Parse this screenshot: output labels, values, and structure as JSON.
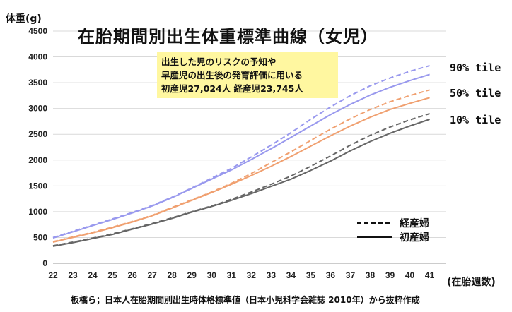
{
  "chart_data": {
    "type": "line",
    "title": "在胎期間別出生体重標準曲線（女児）",
    "ylabel": "体重(g)",
    "xlabel": "(在胎週数)",
    "x": [
      22,
      23,
      24,
      25,
      26,
      27,
      28,
      29,
      30,
      31,
      32,
      33,
      34,
      35,
      36,
      37,
      38,
      39,
      40,
      41
    ],
    "xlim": [
      22,
      41.8
    ],
    "ylim": [
      0,
      4500
    ],
    "yticks": [
      0,
      500,
      1000,
      1500,
      2000,
      2500,
      3000,
      3500,
      4000,
      4500
    ],
    "grid": true,
    "series": [
      {
        "name": "経産婦",
        "percentile": "90% tile",
        "color": "#9999ee",
        "style": "dashed",
        "values": [
          500,
          620,
          740,
          860,
          985,
          1120,
          1280,
          1460,
          1650,
          1840,
          2060,
          2290,
          2530,
          2790,
          3030,
          3250,
          3440,
          3590,
          3720,
          3830
        ]
      },
      {
        "name": "初産婦",
        "percentile": "90% tile",
        "color": "#9999ee",
        "style": "solid",
        "values": [
          490,
          610,
          730,
          850,
          975,
          1110,
          1270,
          1450,
          1630,
          1810,
          2010,
          2220,
          2440,
          2660,
          2880,
          3080,
          3260,
          3410,
          3540,
          3660
        ]
      },
      {
        "name": "経産婦",
        "percentile": "50% tile",
        "color": "#f0a070",
        "style": "dashed",
        "values": [
          420,
          510,
          600,
          700,
          810,
          930,
          1080,
          1230,
          1380,
          1550,
          1740,
          1950,
          2160,
          2380,
          2600,
          2800,
          2980,
          3130,
          3250,
          3360
        ]
      },
      {
        "name": "初産婦",
        "percentile": "50% tile",
        "color": "#f0a070",
        "style": "solid",
        "values": [
          410,
          500,
          590,
          690,
          800,
          920,
          1070,
          1220,
          1370,
          1530,
          1700,
          1880,
          2070,
          2270,
          2470,
          2660,
          2830,
          2980,
          3100,
          3210
        ]
      },
      {
        "name": "経産婦",
        "percentile": "10% tile",
        "color": "#666666",
        "style": "dashed",
        "values": [
          340,
          410,
          490,
          570,
          670,
          770,
          880,
          1000,
          1110,
          1240,
          1380,
          1530,
          1690,
          1880,
          2080,
          2290,
          2480,
          2640,
          2780,
          2900
        ]
      },
      {
        "name": "初産婦",
        "percentile": "10% tile",
        "color": "#666666",
        "style": "solid",
        "values": [
          330,
          400,
          480,
          560,
          660,
          760,
          870,
          990,
          1100,
          1220,
          1350,
          1490,
          1630,
          1800,
          1980,
          2180,
          2360,
          2520,
          2660,
          2790
        ]
      }
    ]
  },
  "percentile_labels": [
    "90% tile",
    "50% tile",
    "10% tile"
  ],
  "note_lines": [
    "出生した児のリスクの予知や",
    "早産児の出生後の発育評価に用いる",
    "初産児27,024人  経産児23,745人"
  ],
  "legend": {
    "dashed": "経産婦",
    "solid": "初産婦"
  },
  "source": "板橋ら；日本人在胎期間別出生時体格標準値（日本小児科学会雑誌 2010年）から抜粋作成",
  "colors": {
    "grid": "#d9d9d9",
    "note_bg": "#fff7a0"
  }
}
